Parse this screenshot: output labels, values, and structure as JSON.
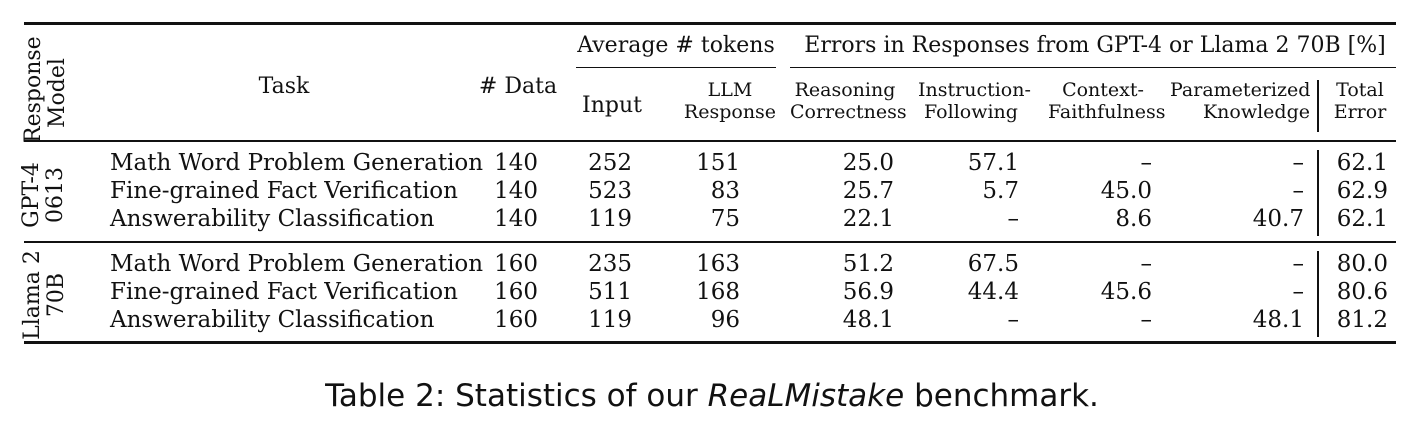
{
  "header": {
    "response_model": "Response Model",
    "task": "Task",
    "n_data": "# Data",
    "avg_tokens": "Average # tokens",
    "input": "Input",
    "llm_response": "LLM Response",
    "errors_group": "Errors in Responses from GPT-4 or Llama 2 70B [%]",
    "reasoning": "Reasoning Correctness",
    "instruction": "Instruction- Following",
    "context": "Context- Faithfulness",
    "parameterized": "Parameterized Knowledge",
    "total": "Total Error"
  },
  "groups": [
    {
      "model": "GPT-4 0613",
      "rows": [
        {
          "task": "Math Word Problem Generation",
          "data": "140",
          "input": "252",
          "resp": "151",
          "reasoning": "25.0",
          "instruction": "57.1",
          "context": "–",
          "param": "–",
          "total": "62.1"
        },
        {
          "task": "Fine-grained Fact Verification",
          "data": "140",
          "input": "523",
          "resp": "83",
          "reasoning": "25.7",
          "instruction": "5.7",
          "context": "45.0",
          "param": "–",
          "total": "62.9"
        },
        {
          "task": "Answerability Classification",
          "data": "140",
          "input": "119",
          "resp": "75",
          "reasoning": "22.1",
          "instruction": "–",
          "context": "8.6",
          "param": "40.7",
          "total": "62.1"
        }
      ]
    },
    {
      "model": "Llama 2 70B",
      "rows": [
        {
          "task": "Math Word Problem Generation",
          "data": "160",
          "input": "235",
          "resp": "163",
          "reasoning": "51.2",
          "instruction": "67.5",
          "context": "–",
          "param": "–",
          "total": "80.0"
        },
        {
          "task": "Fine-grained Fact Verification",
          "data": "160",
          "input": "511",
          "resp": "168",
          "reasoning": "56.9",
          "instruction": "44.4",
          "context": "45.6",
          "param": "–",
          "total": "80.6"
        },
        {
          "task": "Answerability Classification",
          "data": "160",
          "input": "119",
          "resp": "96",
          "reasoning": "48.1",
          "instruction": "–",
          "context": "–",
          "param": "48.1",
          "total": "81.2"
        }
      ]
    }
  ],
  "caption": {
    "prefix": "Table 2: Statistics of our ",
    "emph": "ReaLMistake",
    "suffix": " benchmark."
  }
}
